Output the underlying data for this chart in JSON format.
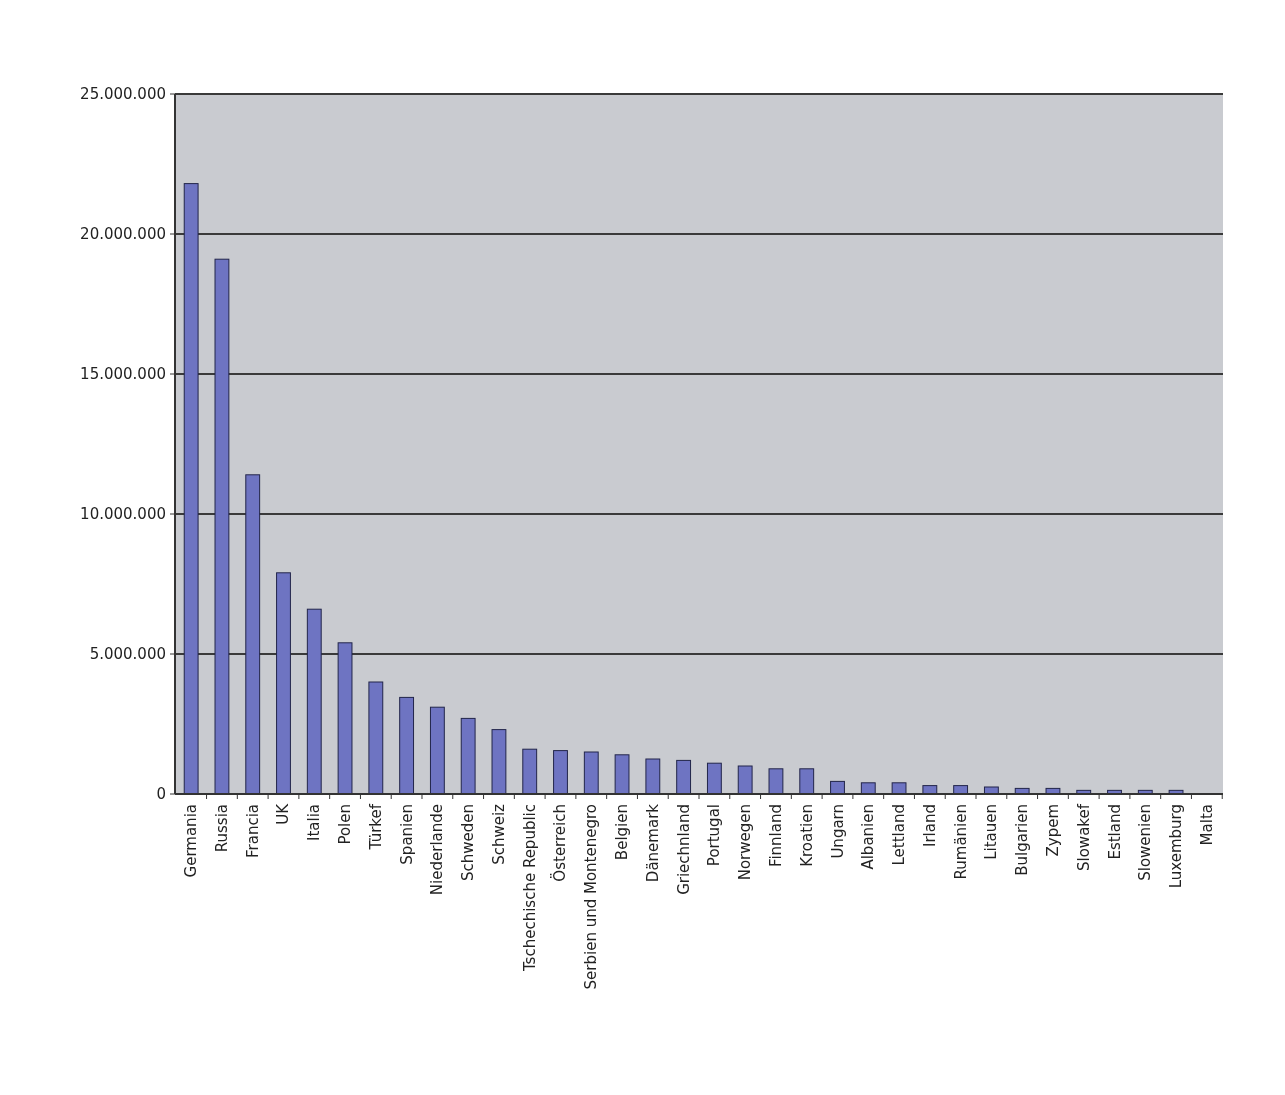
{
  "chart_data": {
    "type": "bar",
    "categories": [
      "Germania",
      "Russia",
      "Francia",
      "UK",
      "Italia",
      "Polen",
      "Türkef",
      "Spanien",
      "Niederlande",
      "Schweden",
      "Schweiz",
      "Tschechische Republic",
      "Österreich",
      "Serbien und Montenegro",
      "Belgien",
      "Dänemark",
      "Griechnland",
      "Portugal",
      "Norwegen",
      "Finnland",
      "Kroatien",
      "Ungarn",
      "Albanien",
      "Lettland",
      "Irland",
      "Rumänien",
      "Litauen",
      "Bulgarien",
      "Zypem",
      "Slowakef",
      "Estland",
      "Slowenien",
      "Luxemburg",
      "Malta"
    ],
    "values": [
      21800000,
      19100000,
      11400000,
      7900000,
      6600000,
      5400000,
      4000000,
      3450000,
      3100000,
      2700000,
      2300000,
      1600000,
      1550000,
      1500000,
      1400000,
      1250000,
      1200000,
      1100000,
      1000000,
      900000,
      900000,
      450000,
      400000,
      400000,
      300000,
      300000,
      250000,
      200000,
      200000,
      130000,
      130000,
      130000,
      130000,
      null
    ],
    "color": "#6e74c2",
    "ylim": [
      0,
      25000000
    ],
    "yticks": [
      {
        "value": 0,
        "label": "0"
      },
      {
        "value": 5000000,
        "label": "5.000.000"
      },
      {
        "value": 10000000,
        "label": "10.000.000"
      },
      {
        "value": 15000000,
        "label": "15.000.000"
      },
      {
        "value": 20000000,
        "label": "20.000.000"
      },
      {
        "value": 25000000,
        "label": "25.000.000"
      }
    ],
    "grid": "y"
  }
}
